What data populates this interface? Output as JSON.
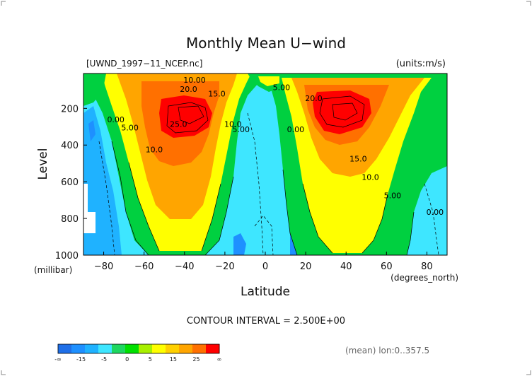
{
  "chart_data": {
    "type": "heatmap",
    "title": "Monthly Mean U−wind",
    "dataset_label": "[UWND_1997−11_NCEP.nc]",
    "units_label": "(units:m/s)",
    "xlabel": "Latitude",
    "ylabel": "Level",
    "x_unit_label": "(degrees_north)",
    "y_unit_label": "(millibar)",
    "x_ticks": [
      "−80",
      "−60",
      "−40",
      "−20",
      "0",
      "20",
      "40",
      "60",
      "80"
    ],
    "y_ticks": [
      "200",
      "400",
      "600",
      "800",
      "1000"
    ],
    "xlim": [
      -90,
      90
    ],
    "ylim": [
      1000,
      10
    ],
    "contour_interval_text": "CONTOUR INTERVAL = 2.500E+00",
    "footer_text": "(mean) lon:0..357.5",
    "contour_labels": [
      {
        "text": "20.0",
        "lat": -38,
        "lev": 110
      },
      {
        "text": "15.0",
        "lat": -24,
        "lev": 135
      },
      {
        "text": "10.00",
        "lat": -35,
        "lev": 60
      },
      {
        "text": "25.0",
        "lat": -43,
        "lev": 300
      },
      {
        "text": "10.0",
        "lat": -16,
        "lev": 300
      },
      {
        "text": "5.00",
        "lat": -12,
        "lev": 330
      },
      {
        "text": "10.0",
        "lat": -55,
        "lev": 440
      },
      {
        "text": "5.00",
        "lat": -67,
        "lev": 320
      },
      {
        "text": "0.00",
        "lat": -74,
        "lev": 275
      },
      {
        "text": "5.00",
        "lat": 8,
        "lev": 100
      },
      {
        "text": "0.00",
        "lat": 15,
        "lev": 330
      },
      {
        "text": "20.0",
        "lat": 24,
        "lev": 160
      },
      {
        "text": "15.0",
        "lat": 46,
        "lev": 490
      },
      {
        "text": "10.0",
        "lat": 52,
        "lev": 590
      },
      {
        "text": "5.00",
        "lat": 63,
        "lev": 690
      },
      {
        "text": "0.00",
        "lat": 84,
        "lev": 780
      }
    ],
    "colorbar": {
      "colors": [
        "#1f6fe8",
        "#1e90ff",
        "#1fb2ff",
        "#3ee6ff",
        "#1ed760",
        "#00e000",
        "#a8f000",
        "#ffff00",
        "#ffd000",
        "#ffa500",
        "#ff7000",
        "#ff0000"
      ],
      "tick_labels": [
        "-∞",
        "-15",
        "-5",
        "0",
        "5",
        "15",
        "25",
        "∞"
      ]
    }
  }
}
